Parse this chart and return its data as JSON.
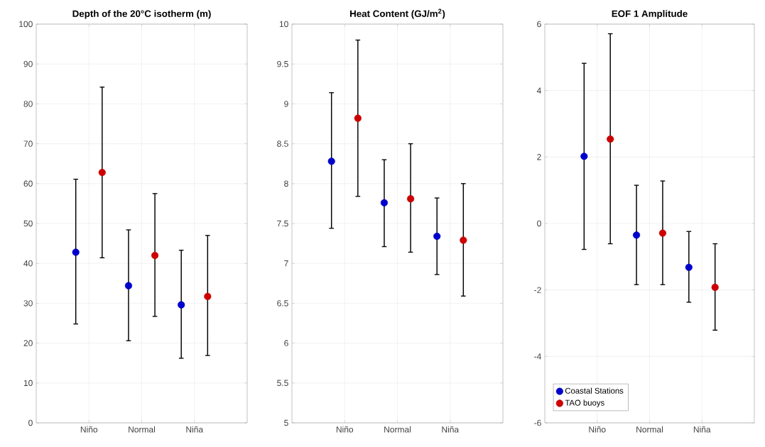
{
  "chart_data": [
    {
      "type": "scatter",
      "title": "Depth of the 20°C isotherm (m)",
      "categories": [
        "Niño",
        "Normal",
        "Niña"
      ],
      "series": [
        {
          "color": "#0000cc",
          "values": [
            42.8,
            34.4,
            29.6
          ],
          "errors": [
            [
              24.8,
              61.1
            ],
            [
              20.6,
              48.4
            ],
            [
              16.2,
              43.3
            ]
          ]
        },
        {
          "color": "#cc0000",
          "values": [
            62.8,
            42.0,
            31.7
          ],
          "errors": [
            [
              41.4,
              84.2
            ],
            [
              26.7,
              57.5
            ],
            [
              16.9,
              47.0
            ]
          ]
        }
      ],
      "ylim": [
        0,
        100
      ],
      "yticks": [
        0,
        10,
        20,
        30,
        40,
        50,
        60,
        70,
        80,
        90,
        100
      ],
      "grid": true,
      "marker": "circle"
    },
    {
      "type": "scatter",
      "title": "Heat Content (GJ/m$^{2}$)",
      "categories": [
        "Niño",
        "Normal",
        "Niña"
      ],
      "series": [
        {
          "color": "#0000cc",
          "values": [
            8.28,
            7.76,
            7.34
          ],
          "errors": [
            [
              7.44,
              9.14
            ],
            [
              7.21,
              8.3
            ],
            [
              6.86,
              7.82
            ]
          ]
        },
        {
          "color": "#cc0000",
          "values": [
            8.82,
            7.81,
            7.29
          ],
          "errors": [
            [
              7.84,
              9.8
            ],
            [
              7.14,
              8.5
            ],
            [
              6.59,
              8.0
            ]
          ]
        }
      ],
      "ylim": [
        5,
        10
      ],
      "yticks": [
        5,
        5.5,
        6,
        6.5,
        7,
        7.5,
        8,
        8.5,
        9,
        9.5,
        10
      ],
      "grid": true,
      "marker": "circle"
    },
    {
      "type": "scatter",
      "title": "EOF 1 Amplitude",
      "categories": [
        "Niño",
        "Normal",
        "Niña"
      ],
      "series": [
        {
          "name": "Coastal Stations",
          "color": "#0000cc",
          "values": [
            2.02,
            -0.35,
            -1.32
          ],
          "errors": [
            [
              -0.78,
              4.82
            ],
            [
              -1.84,
              1.15
            ],
            [
              -2.37,
              -0.24
            ]
          ]
        },
        {
          "name": "TAO buoys",
          "color": "#cc0000",
          "values": [
            2.54,
            -0.29,
            -1.92
          ],
          "errors": [
            [
              -0.61,
              5.71
            ],
            [
              -1.84,
              1.28
            ],
            [
              -3.21,
              -0.61
            ]
          ]
        }
      ],
      "ylim": [
        -6,
        6
      ],
      "yticks": [
        -6,
        -4,
        -2,
        0,
        2,
        4,
        6
      ],
      "grid": true,
      "legend": "bottom left",
      "marker": "circle"
    }
  ]
}
